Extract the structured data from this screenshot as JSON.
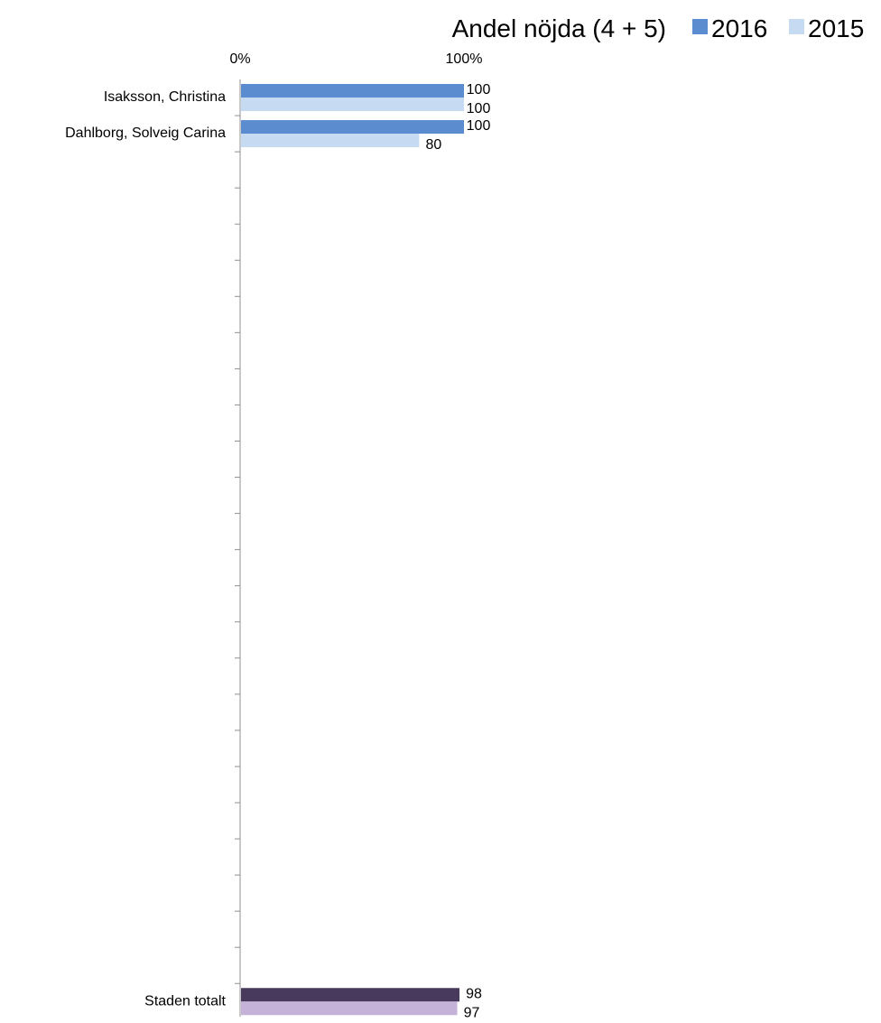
{
  "chart_data": {
    "type": "bar",
    "orientation": "horizontal",
    "title": "Andel nöjda (4 + 5)",
    "xlim": [
      0,
      100
    ],
    "x_ticks": [
      "0%",
      "100%"
    ],
    "categories": [
      "Isaksson, Christina",
      "Dahlborg, Solveig Carina",
      "Staden totalt"
    ],
    "series": [
      {
        "name": "2016",
        "values": [
          100,
          100,
          98
        ],
        "colors": [
          "#5b8ccf",
          "#5b8ccf",
          "#483a5c"
        ]
      },
      {
        "name": "2015",
        "values": [
          100,
          80,
          97
        ],
        "colors": [
          "#c6daf2",
          "#c6daf2",
          "#c4b2d9"
        ]
      }
    ],
    "legend_position": "top-right",
    "grid": false
  }
}
